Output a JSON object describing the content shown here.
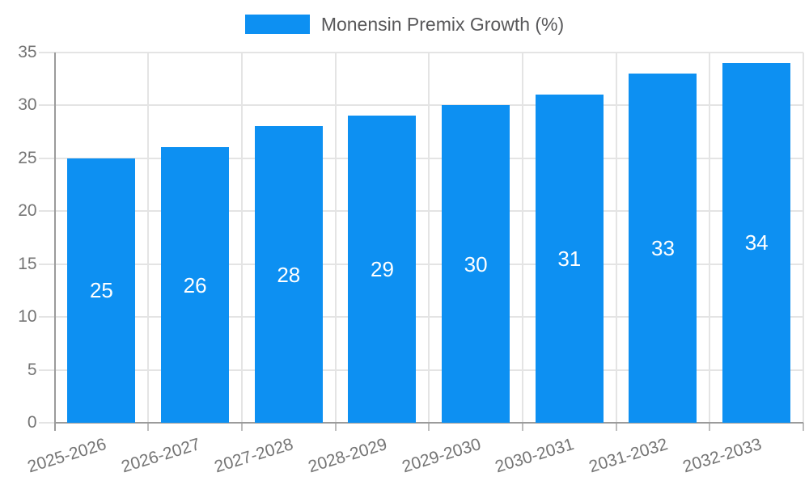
{
  "chart_data": {
    "type": "bar",
    "title": "",
    "xlabel": "",
    "ylabel": "",
    "categories": [
      "2025-2026",
      "2026-2027",
      "2027-2028",
      "2028-2029",
      "2029-2030",
      "2030-2031",
      "2031-2032",
      "2032-2033"
    ],
    "series": [
      {
        "name": "Monensin Premix Growth (%)",
        "values": [
          25,
          26,
          28,
          29,
          30,
          31,
          33,
          34
        ],
        "color": "#0d90f2"
      }
    ],
    "bar_value_labels_shown": true,
    "bar_value_label_color": "#ffffff",
    "ylim": [
      0,
      35
    ],
    "yticks": [
      0,
      5,
      10,
      15,
      20,
      25,
      30,
      35
    ],
    "grid": true,
    "legend_position": "top-center",
    "x_tick_rotation_deg": -17,
    "colors": {
      "axis": "#9b9b9b",
      "gridline": "#e4e4e4",
      "x_tick_mark": "#bdbdbd",
      "tick_label": "#757575",
      "legend_text": "#58585a",
      "background": "#ffffff"
    }
  }
}
